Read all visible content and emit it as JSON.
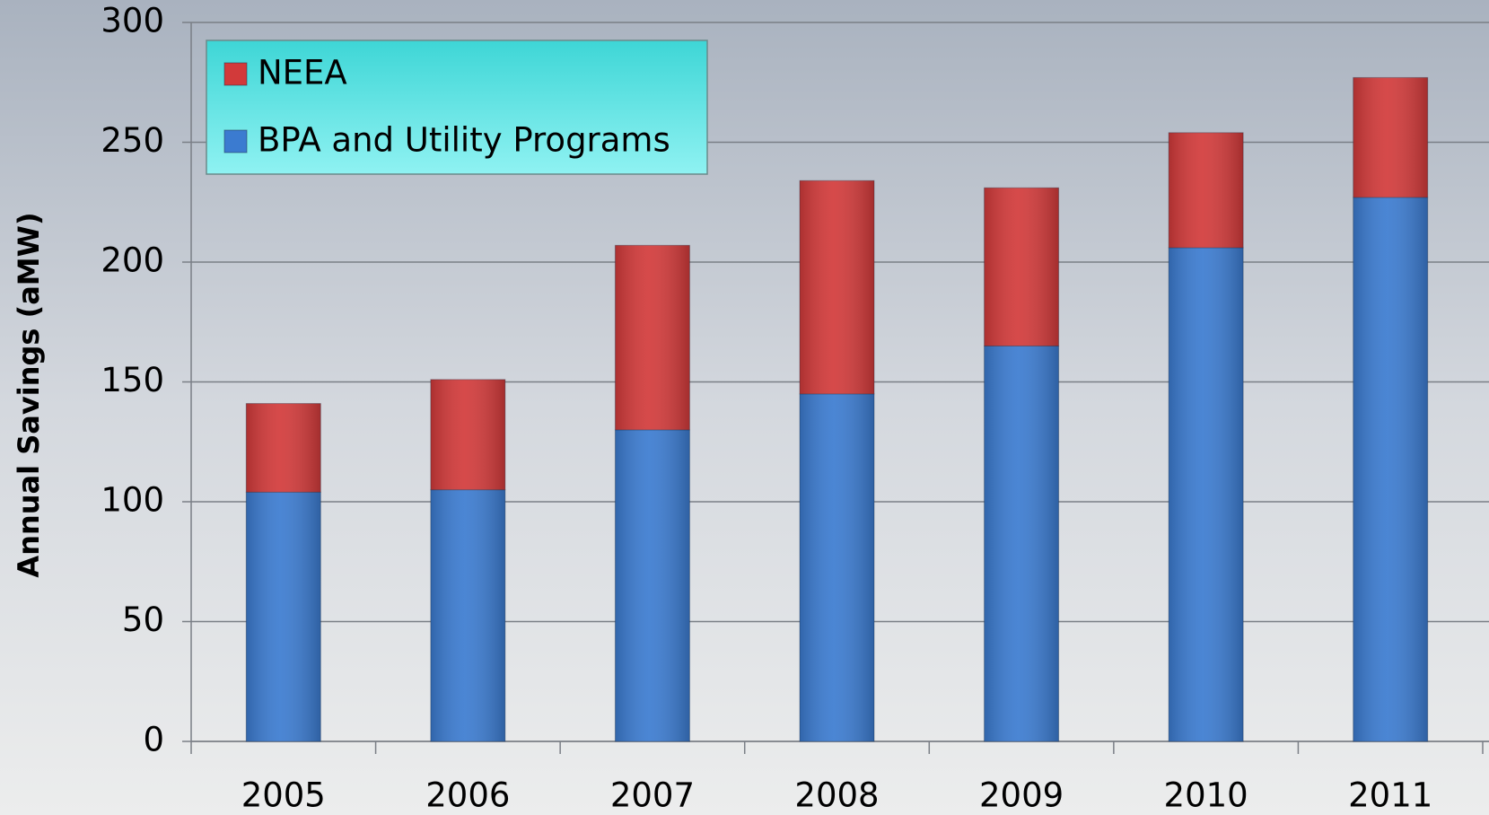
{
  "chart_data": {
    "type": "stacked_bar",
    "y_label": "Annual Savings (aMW)",
    "categories": [
      "2005",
      "2006",
      "2007",
      "2008",
      "2009",
      "2010",
      "2011"
    ],
    "series": [
      {
        "name": "BPA and Utility Programs",
        "color": "#3b7bd0",
        "values": [
          104,
          105,
          130,
          145,
          165,
          206,
          227
        ]
      },
      {
        "name": "NEEA",
        "color": "#d23a3a",
        "values": [
          37,
          46,
          77,
          89,
          66,
          48,
          50
        ]
      }
    ],
    "ylim": [
      0,
      300
    ],
    "yticks": [
      0,
      50,
      100,
      150,
      200,
      250,
      300
    ],
    "grid": true,
    "legend": "upper left"
  }
}
